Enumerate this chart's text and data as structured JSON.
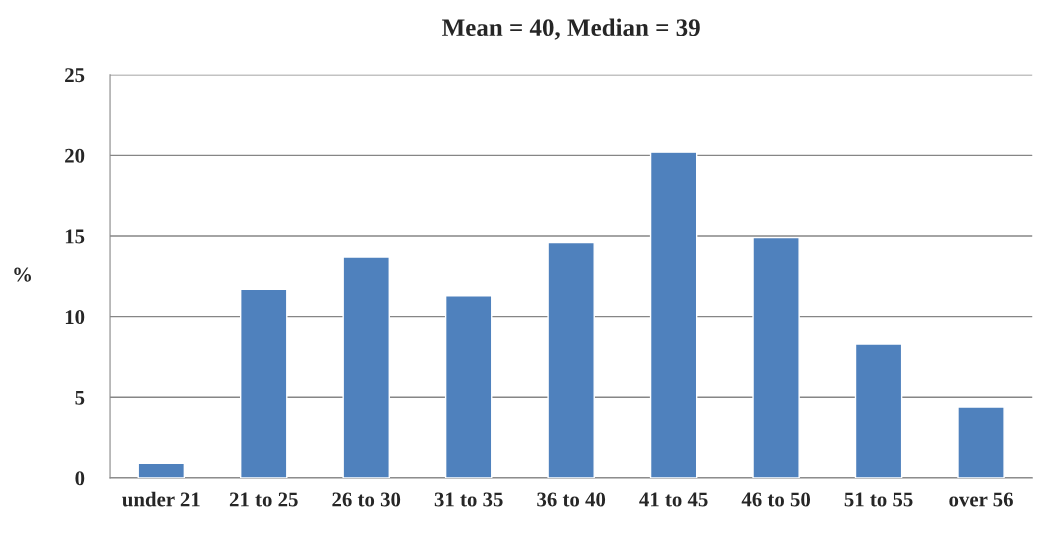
{
  "chart_data": {
    "type": "bar",
    "title": "Mean = 40, Median = 39",
    "ylabel": "%",
    "categories": [
      "under 21",
      "21 to 25",
      "26 to 30",
      "31 to 35",
      "36 to 40",
      "41 to 45",
      "46 to 50",
      "51 to 55",
      "over 56"
    ],
    "values": [
      0.9,
      11.7,
      13.7,
      11.3,
      14.6,
      20.2,
      14.9,
      8.3,
      4.4
    ],
    "color": "#4f81bd",
    "ylim": [
      0,
      25
    ],
    "yticks": [
      0,
      5,
      10,
      15,
      20,
      25
    ],
    "grid": "y"
  }
}
